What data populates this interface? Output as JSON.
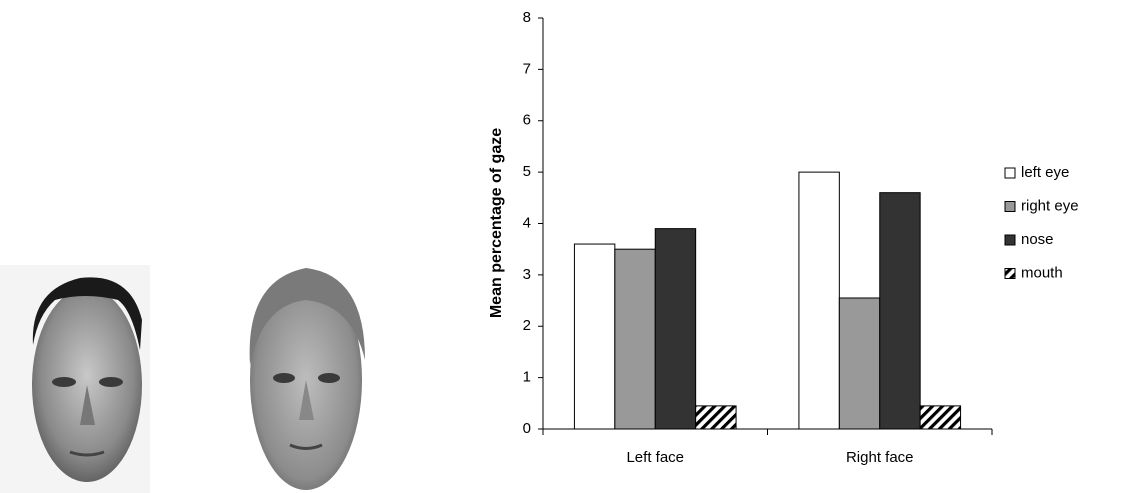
{
  "chart_data": {
    "type": "bar",
    "y_label": "Mean percentage of gaze",
    "categories": [
      "Left face",
      "Right face"
    ],
    "series": [
      {
        "name": "left eye",
        "color": "#ffffff",
        "values": [
          3.6,
          5.0
        ]
      },
      {
        "name": "right eye",
        "color": "#999999",
        "values": [
          3.5,
          2.55
        ]
      },
      {
        "name": "nose",
        "color": "#333333",
        "values": [
          3.9,
          4.6
        ]
      },
      {
        "name": "mouth",
        "color": "#ffffff",
        "hatch": true,
        "values": [
          0.45,
          0.45
        ]
      }
    ],
    "ylim": [
      0,
      8
    ],
    "yticks": [
      0,
      1,
      2,
      3,
      4,
      5,
      6,
      7,
      8
    ],
    "grid": false,
    "legend": "right"
  }
}
